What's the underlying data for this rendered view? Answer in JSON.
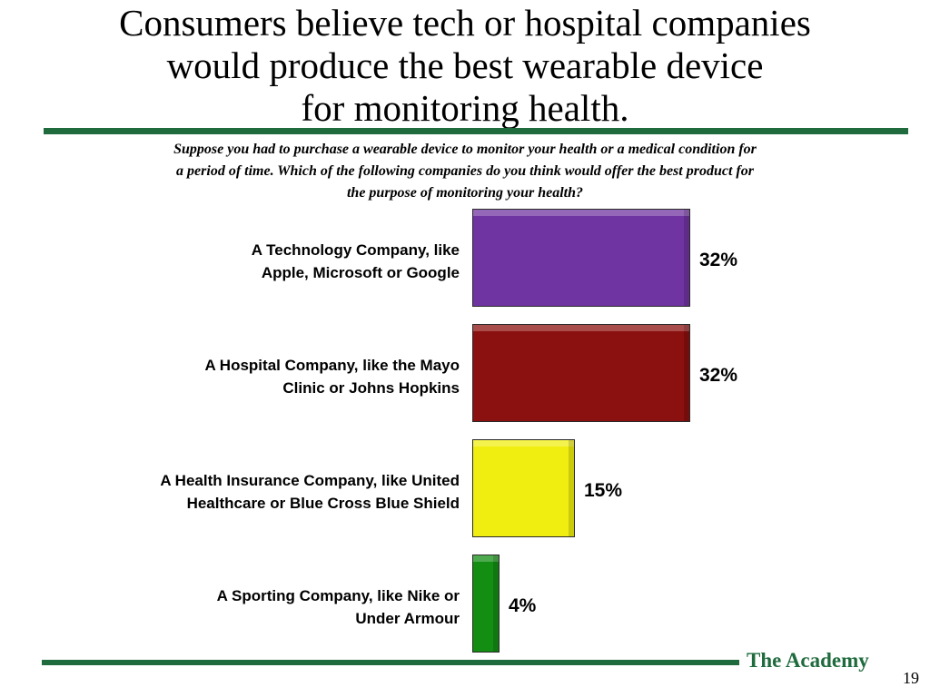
{
  "slide": {
    "title_lines": [
      "Consumers believe tech or hospital companies",
      "would produce the best wearable device",
      "for monitoring health."
    ],
    "question_lines": [
      "Suppose you had to purchase a wearable device to monitor your health or a medical condition for",
      "a period of time. Which of the following companies do you think would offer the best product for",
      "the purpose of monitoring your health?"
    ],
    "brand": "The Academy",
    "page_number": "19"
  },
  "chart_data": {
    "type": "bar",
    "orientation": "horizontal",
    "title": "",
    "xlabel": "",
    "ylabel": "",
    "xlim": [
      0,
      32
    ],
    "grid": false,
    "categories": [
      [
        "A Technology Company, like",
        "Apple, Microsoft or Google"
      ],
      [
        "A Hospital Company, like the Mayo",
        "Clinic or Johns Hopkins"
      ],
      [
        "A Health Insurance Company, like United",
        "Healthcare or Blue Cross Blue Shield"
      ],
      [
        "A Sporting Company, like Nike or",
        "Under Armour"
      ]
    ],
    "values": [
      32,
      32,
      15,
      4
    ],
    "value_labels": [
      "32%",
      "32%",
      "15%",
      "4%"
    ],
    "colors": [
      "#7034a2",
      "#8b1010",
      "#f0ee10",
      "#138e13"
    ]
  }
}
